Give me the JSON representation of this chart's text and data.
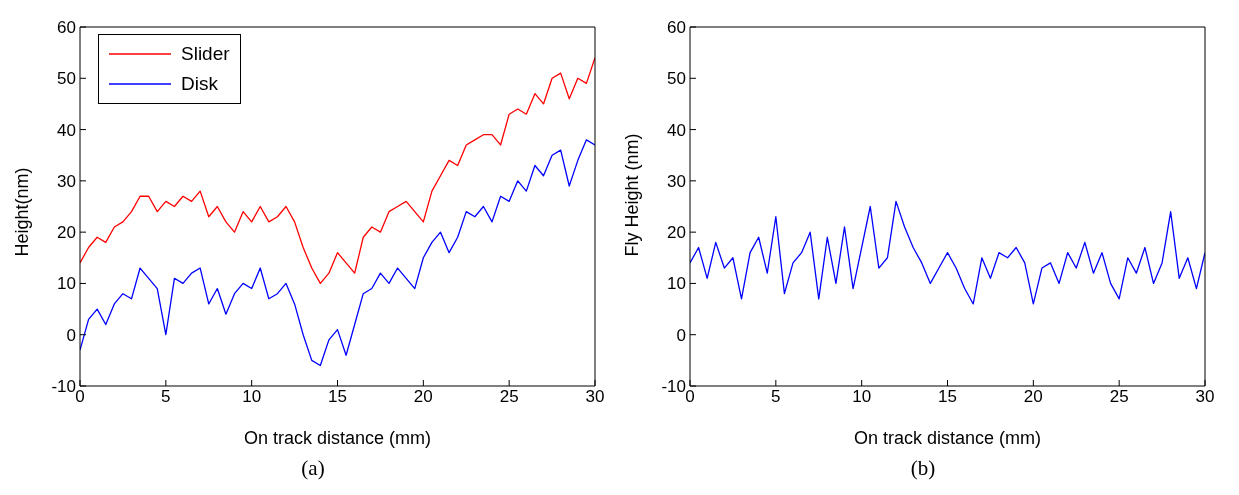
{
  "chart_data": [
    {
      "type": "line",
      "xlabel": "On track distance (mm)",
      "ylabel": "Height(nm)",
      "annotations": [
        "(a)"
      ],
      "legend": "top left",
      "x": [
        0,
        0.5,
        1,
        1.5,
        2,
        2.5,
        3,
        3.5,
        4,
        4.5,
        5,
        5.5,
        6,
        6.5,
        7,
        7.5,
        8,
        8.5,
        9,
        9.5,
        10,
        10.5,
        11,
        11.5,
        12,
        12.5,
        13,
        13.5,
        14,
        14.5,
        15,
        15.5,
        16,
        16.5,
        17,
        17.5,
        18,
        18.5,
        19,
        19.5,
        20,
        20.5,
        21,
        21.5,
        22,
        22.5,
        23,
        23.5,
        24,
        24.5,
        25,
        25.5,
        26,
        26.5,
        27,
        27.5,
        28,
        28.5,
        29,
        29.5,
        30
      ],
      "series": [
        {
          "name": "Slider",
          "color": "#ff0000",
          "values": [
            14,
            17,
            19,
            18,
            21,
            22,
            24,
            27,
            27,
            24,
            26,
            25,
            27,
            26,
            28,
            23,
            25,
            22,
            20,
            24,
            22,
            25,
            22,
            23,
            25,
            22,
            17,
            13,
            10,
            12,
            16,
            14,
            12,
            19,
            21,
            20,
            24,
            25,
            26,
            24,
            22,
            28,
            31,
            34,
            33,
            37,
            38,
            39,
            39,
            37,
            43,
            44,
            43,
            47,
            45,
            50,
            51,
            46,
            50,
            49,
            54
          ]
        },
        {
          "name": "Disk",
          "color": "#0000ff",
          "values": [
            -3,
            3,
            5,
            2,
            6,
            8,
            7,
            13,
            11,
            9,
            0,
            11,
            10,
            12,
            13,
            6,
            9,
            4,
            8,
            10,
            9,
            13,
            7,
            8,
            10,
            6,
            0,
            -5,
            -6,
            -1,
            1,
            -4,
            2,
            8,
            9,
            12,
            10,
            13,
            11,
            9,
            15,
            18,
            20,
            16,
            19,
            24,
            23,
            25,
            22,
            27,
            26,
            30,
            28,
            33,
            31,
            35,
            36,
            29,
            34,
            38,
            37
          ]
        }
      ],
      "xlim": [
        0,
        30
      ],
      "ylim": [
        -10,
        60
      ],
      "xticks": [
        0,
        5,
        10,
        15,
        20,
        25,
        30
      ],
      "yticks": [
        -10,
        0,
        10,
        20,
        30,
        40,
        50,
        60
      ]
    },
    {
      "type": "line",
      "xlabel": "On track distance (mm)",
      "ylabel": "Fly Height (nm)",
      "annotations": [
        "(b)"
      ],
      "x": [
        0,
        0.5,
        1,
        1.5,
        2,
        2.5,
        3,
        3.5,
        4,
        4.5,
        5,
        5.5,
        6,
        6.5,
        7,
        7.5,
        8,
        8.5,
        9,
        9.5,
        10,
        10.5,
        11,
        11.5,
        12,
        12.5,
        13,
        13.5,
        14,
        14.5,
        15,
        15.5,
        16,
        16.5,
        17,
        17.5,
        18,
        18.5,
        19,
        19.5,
        20,
        20.5,
        21,
        21.5,
        22,
        22.5,
        23,
        23.5,
        24,
        24.5,
        25,
        25.5,
        26,
        26.5,
        27,
        27.5,
        28,
        28.5,
        29,
        29.5,
        30
      ],
      "series": [
        {
          "color": "#0000ff",
          "values": [
            14,
            17,
            11,
            18,
            13,
            15,
            7,
            16,
            19,
            12,
            23,
            8,
            14,
            16,
            20,
            7,
            19,
            10,
            21,
            9,
            17,
            25,
            13,
            15,
            26,
            21,
            17,
            14,
            10,
            13,
            16,
            13,
            9,
            6,
            15,
            11,
            16,
            15,
            17,
            14,
            6,
            13,
            14,
            10,
            16,
            13,
            18,
            12,
            16,
            10,
            7,
            15,
            12,
            17,
            10,
            14,
            24,
            11,
            15,
            9,
            16
          ]
        }
      ],
      "xlim": [
        0,
        30
      ],
      "ylim": [
        -10,
        60
      ],
      "xticks": [
        0,
        5,
        10,
        15,
        20,
        25,
        30
      ],
      "yticks": [
        -10,
        0,
        10,
        20,
        30,
        40,
        50,
        60
      ]
    }
  ]
}
